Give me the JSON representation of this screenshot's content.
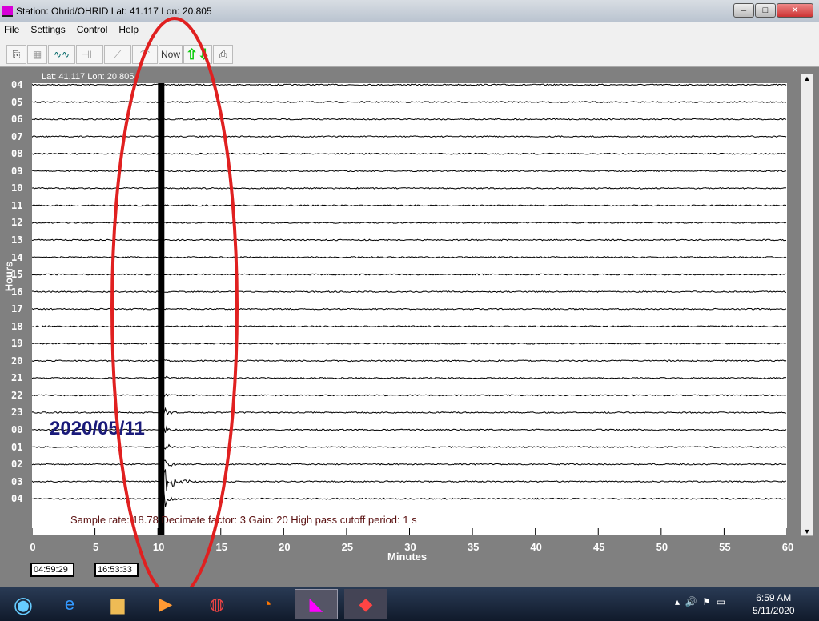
{
  "window": {
    "title": "Station: Ohrid/OHRID Lat: 41.117 Lon: 20.805",
    "controls": [
      "minimize",
      "maximize",
      "close"
    ]
  },
  "menu": [
    "File",
    "Settings",
    "Control",
    "Help"
  ],
  "toolbar": {
    "buttons": [
      "open-icon",
      "save-icon",
      "waveform-icon",
      "filter-icon",
      "ramp-icon",
      "spectrum-icon",
      "Now",
      "up-down-arrows-icon",
      "print-icon"
    ],
    "now_label": "Now"
  },
  "plot": {
    "latlon": "Lat: 41.117 Lon: 20.805",
    "hours": [
      "04",
      "05",
      "06",
      "07",
      "08",
      "09",
      "10",
      "11",
      "12",
      "13",
      "14",
      "15",
      "16",
      "17",
      "18",
      "19",
      "20",
      "21",
      "22",
      "23",
      "00",
      "01",
      "02",
      "03",
      "04"
    ],
    "y_label": "Hours",
    "x_ticks": [
      "0",
      "5",
      "10",
      "15",
      "20",
      "25",
      "30",
      "35",
      "40",
      "45",
      "50",
      "55",
      "60"
    ],
    "x_label": "Minutes",
    "date": "2020/05/11",
    "info": "Sample rate: 18.78  Decimate factor: 3  Gain: 20  High pass cutoff period: 1 s",
    "event_minute": 10.2,
    "start_time": "04:59:29",
    "cursor_time": "16:53:33"
  },
  "annotation": {
    "shape": "ellipse",
    "color": "#e02020"
  },
  "taskbar": {
    "apps": [
      "start",
      "internet-explorer",
      "file-explorer",
      "media-player",
      "chrome",
      "firefox",
      "seismograph",
      "anydesk"
    ],
    "time": "6:59 AM",
    "date": "5/11/2020"
  }
}
